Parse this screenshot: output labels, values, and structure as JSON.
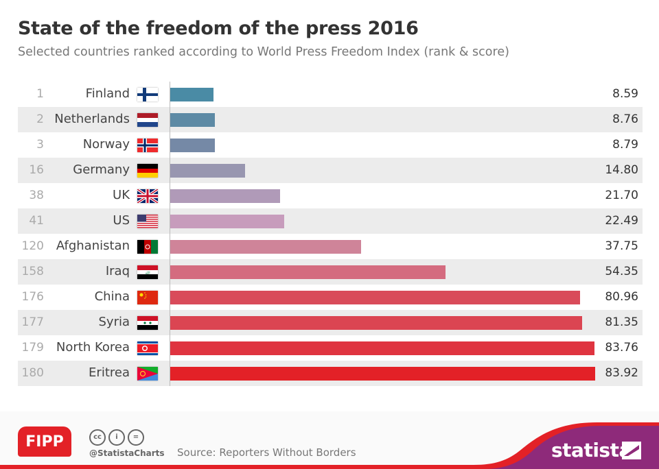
{
  "header": {
    "title": "State of the freedom of the press 2016",
    "subtitle": "Selected countries ranked according to World Press Freedom Index (rank & score)"
  },
  "chart_data": {
    "type": "bar",
    "orientation": "horizontal",
    "title": "State of the freedom of the press 2016",
    "subtitle": "Selected countries ranked according to World Press Freedom Index (rank & score)",
    "xlim": [
      0,
      83.92
    ],
    "grid": false,
    "rows": [
      {
        "rank": "1",
        "country": "Finland",
        "flag": "finland",
        "value": 8.59,
        "label": "8.59",
        "color": "#4a8ba5"
      },
      {
        "rank": "2",
        "country": "Netherlands",
        "flag": "netherlands",
        "value": 8.76,
        "label": "8.76",
        "color": "#5d8aa5"
      },
      {
        "rank": "3",
        "country": "Norway",
        "flag": "norway",
        "value": 8.79,
        "label": "8.79",
        "color": "#7589a6"
      },
      {
        "rank": "16",
        "country": "Germany",
        "flag": "germany",
        "value": 14.8,
        "label": "14.80",
        "color": "#9896b0"
      },
      {
        "rank": "38",
        "country": "UK",
        "flag": "uk",
        "value": 21.7,
        "label": "21.70",
        "color": "#b09ab8"
      },
      {
        "rank": "41",
        "country": "US",
        "flag": "us",
        "value": 22.49,
        "label": "22.49",
        "color": "#c79cbc"
      },
      {
        "rank": "120",
        "country": "Afghanistan",
        "flag": "afghanistan",
        "value": 37.75,
        "label": "37.75",
        "color": "#cf8499"
      },
      {
        "rank": "158",
        "country": "Iraq",
        "flag": "iraq",
        "value": 54.35,
        "label": "54.35",
        "color": "#d46b7f"
      },
      {
        "rank": "176",
        "country": "China",
        "flag": "china",
        "value": 80.96,
        "label": "80.96",
        "color": "#d94b5a"
      },
      {
        "rank": "177",
        "country": "Syria",
        "flag": "syria",
        "value": 81.35,
        "label": "81.35",
        "color": "#db4552"
      },
      {
        "rank": "179",
        "country": "North Korea",
        "flag": "north-korea",
        "value": 83.76,
        "label": "83.76",
        "color": "#df3440"
      },
      {
        "rank": "180",
        "country": "Eritrea",
        "flag": "eritrea",
        "value": 83.92,
        "label": "83.92",
        "color": "#e32127"
      }
    ]
  },
  "footer": {
    "fipp": "FIPP",
    "handle": "@StatistaCharts",
    "source": "Source: Reporters Without Borders",
    "brand": "statista",
    "cc_icons": [
      "cc",
      "by",
      "nd"
    ],
    "brand_color": "#8e2a7a",
    "accent_color": "#e32127"
  }
}
